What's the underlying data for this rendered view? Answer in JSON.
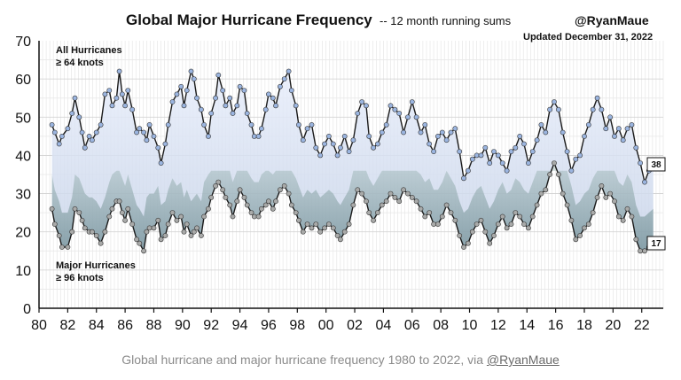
{
  "chart_data": {
    "type": "line",
    "title": "Global Major Hurricane Frequency",
    "subtitle": "-- 12 month running sums",
    "handle": "@RyanMaue",
    "updated": "Updated December 31, 2022",
    "ylim": [
      0,
      70
    ],
    "xlim": [
      1980,
      2023.5
    ],
    "y_ticks": [
      "0",
      "10",
      "20",
      "30",
      "40",
      "50",
      "60",
      "70"
    ],
    "x_ticks": [
      "80",
      "82",
      "84",
      "86",
      "88",
      "90",
      "92",
      "94",
      "96",
      "98",
      "00",
      "02",
      "04",
      "06",
      "08",
      "10",
      "12",
      "14",
      "16",
      "18",
      "20",
      "22"
    ],
    "grid": true,
    "series": [
      {
        "name": "All Hurricanes ≥ 64 knots",
        "label_line1": "All Hurricanes",
        "label_line2": "≥ 64 knots",
        "color": "#1a1a1a",
        "marker_color": "#9bb5e0",
        "fill_color": "#dbe4f7",
        "end_value": "38",
        "points": [
          [
            1980.9,
            48
          ],
          [
            1981.1,
            46
          ],
          [
            1981.4,
            43
          ],
          [
            1981.6,
            45
          ],
          [
            1982.0,
            47
          ],
          [
            1982.3,
            51
          ],
          [
            1982.5,
            55
          ],
          [
            1982.8,
            50
          ],
          [
            1983.0,
            46
          ],
          [
            1983.2,
            42
          ],
          [
            1983.5,
            45
          ],
          [
            1983.7,
            44
          ],
          [
            1984.0,
            46
          ],
          [
            1984.3,
            48
          ],
          [
            1984.6,
            56
          ],
          [
            1984.9,
            57
          ],
          [
            1985.1,
            53
          ],
          [
            1985.4,
            55
          ],
          [
            1985.6,
            62
          ],
          [
            1985.8,
            56
          ],
          [
            1986.0,
            53
          ],
          [
            1986.2,
            57
          ],
          [
            1986.5,
            52
          ],
          [
            1986.8,
            46
          ],
          [
            1987.0,
            47
          ],
          [
            1987.3,
            46
          ],
          [
            1987.5,
            44
          ],
          [
            1987.7,
            48
          ],
          [
            1988.0,
            45
          ],
          [
            1988.3,
            42
          ],
          [
            1988.5,
            38
          ],
          [
            1988.8,
            43
          ],
          [
            1989.0,
            48
          ],
          [
            1989.3,
            54
          ],
          [
            1989.6,
            56
          ],
          [
            1989.9,
            58
          ],
          [
            1990.1,
            53
          ],
          [
            1990.3,
            57
          ],
          [
            1990.6,
            62
          ],
          [
            1990.8,
            60
          ],
          [
            1991.0,
            55
          ],
          [
            1991.3,
            52
          ],
          [
            1991.5,
            48
          ],
          [
            1991.8,
            45
          ],
          [
            1992.0,
            51
          ],
          [
            1992.3,
            55
          ],
          [
            1992.5,
            61
          ],
          [
            1992.8,
            57
          ],
          [
            1993.0,
            53
          ],
          [
            1993.3,
            55
          ],
          [
            1993.5,
            51
          ],
          [
            1993.8,
            53
          ],
          [
            1994.0,
            58
          ],
          [
            1994.3,
            57
          ],
          [
            1994.5,
            51
          ],
          [
            1994.8,
            48
          ],
          [
            1995.0,
            45
          ],
          [
            1995.3,
            45
          ],
          [
            1995.5,
            47
          ],
          [
            1995.8,
            52
          ],
          [
            1996.0,
            56
          ],
          [
            1996.3,
            55
          ],
          [
            1996.5,
            53
          ],
          [
            1996.8,
            58
          ],
          [
            1997.1,
            60
          ],
          [
            1997.4,
            62
          ],
          [
            1997.6,
            57
          ],
          [
            1997.9,
            53
          ],
          [
            1998.1,
            48
          ],
          [
            1998.4,
            44
          ],
          [
            1998.7,
            47
          ],
          [
            1999.0,
            48
          ],
          [
            1999.3,
            42
          ],
          [
            1999.6,
            40
          ],
          [
            1999.9,
            43
          ],
          [
            2000.2,
            45
          ],
          [
            2000.5,
            43
          ],
          [
            2000.8,
            40
          ],
          [
            2001.0,
            42
          ],
          [
            2001.3,
            45
          ],
          [
            2001.6,
            41
          ],
          [
            2001.9,
            44
          ],
          [
            2002.2,
            51
          ],
          [
            2002.5,
            54
          ],
          [
            2002.8,
            53
          ],
          [
            2003.0,
            45
          ],
          [
            2003.3,
            42
          ],
          [
            2003.6,
            43
          ],
          [
            2003.9,
            46
          ],
          [
            2004.2,
            48
          ],
          [
            2004.5,
            53
          ],
          [
            2004.8,
            52
          ],
          [
            2005.1,
            51
          ],
          [
            2005.4,
            46
          ],
          [
            2005.7,
            50
          ],
          [
            2006.0,
            54
          ],
          [
            2006.3,
            50
          ],
          [
            2006.6,
            46
          ],
          [
            2006.9,
            48
          ],
          [
            2007.2,
            43
          ],
          [
            2007.5,
            41
          ],
          [
            2007.8,
            45
          ],
          [
            2008.1,
            46
          ],
          [
            2008.4,
            44
          ],
          [
            2008.7,
            46
          ],
          [
            2009.0,
            47
          ],
          [
            2009.3,
            41
          ],
          [
            2009.6,
            34
          ],
          [
            2009.9,
            36
          ],
          [
            2010.2,
            39
          ],
          [
            2010.5,
            40
          ],
          [
            2010.8,
            40
          ],
          [
            2011.1,
            42
          ],
          [
            2011.4,
            38
          ],
          [
            2011.7,
            41
          ],
          [
            2012.0,
            40
          ],
          [
            2012.3,
            38
          ],
          [
            2012.6,
            36
          ],
          [
            2012.9,
            41
          ],
          [
            2013.2,
            42
          ],
          [
            2013.5,
            45
          ],
          [
            2013.8,
            43
          ],
          [
            2014.1,
            38
          ],
          [
            2014.4,
            41
          ],
          [
            2014.7,
            44
          ],
          [
            2015.0,
            48
          ],
          [
            2015.3,
            46
          ],
          [
            2015.6,
            52
          ],
          [
            2015.9,
            54
          ],
          [
            2016.2,
            52
          ],
          [
            2016.5,
            46
          ],
          [
            2016.8,
            41
          ],
          [
            2017.1,
            36
          ],
          [
            2017.4,
            39
          ],
          [
            2017.7,
            40
          ],
          [
            2018.0,
            45
          ],
          [
            2018.3,
            48
          ],
          [
            2018.6,
            52
          ],
          [
            2018.9,
            55
          ],
          [
            2019.2,
            52
          ],
          [
            2019.5,
            47
          ],
          [
            2019.8,
            50
          ],
          [
            2020.1,
            45
          ],
          [
            2020.4,
            47
          ],
          [
            2020.7,
            44
          ],
          [
            2021.0,
            47
          ],
          [
            2021.3,
            48
          ],
          [
            2021.6,
            42
          ],
          [
            2021.9,
            38
          ],
          [
            2022.2,
            33
          ],
          [
            2022.5,
            36
          ],
          [
            2022.8,
            38
          ]
        ]
      },
      {
        "name": "Major Hurricanes ≥ 96 knots",
        "label_line1": "Major Hurricanes",
        "label_line2": "≥ 96 knots",
        "color": "#1a1a1a",
        "marker_color": "#a9aaa9",
        "fill_color": "#3d6b6a",
        "end_value": "17",
        "points": [
          [
            1980.9,
            26
          ],
          [
            1981.1,
            22
          ],
          [
            1981.4,
            19
          ],
          [
            1981.6,
            16
          ],
          [
            1982.0,
            16
          ],
          [
            1982.3,
            20
          ],
          [
            1982.5,
            26
          ],
          [
            1982.8,
            25
          ],
          [
            1983.0,
            23
          ],
          [
            1983.2,
            21
          ],
          [
            1983.5,
            20
          ],
          [
            1983.7,
            20
          ],
          [
            1984.0,
            19
          ],
          [
            1984.3,
            17
          ],
          [
            1984.6,
            20
          ],
          [
            1984.9,
            24
          ],
          [
            1985.1,
            26
          ],
          [
            1985.4,
            28
          ],
          [
            1985.6,
            28
          ],
          [
            1985.8,
            25
          ],
          [
            1986.0,
            23
          ],
          [
            1986.2,
            26
          ],
          [
            1986.5,
            22
          ],
          [
            1986.8,
            18
          ],
          [
            1987.0,
            17
          ],
          [
            1987.3,
            15
          ],
          [
            1987.5,
            20
          ],
          [
            1987.7,
            21
          ],
          [
            1988.0,
            21
          ],
          [
            1988.3,
            23
          ],
          [
            1988.5,
            18
          ],
          [
            1988.8,
            19
          ],
          [
            1989.0,
            22
          ],
          [
            1989.3,
            25
          ],
          [
            1989.6,
            23
          ],
          [
            1989.9,
            24
          ],
          [
            1990.1,
            20
          ],
          [
            1990.3,
            22
          ],
          [
            1990.6,
            19
          ],
          [
            1990.8,
            20
          ],
          [
            1991.0,
            21
          ],
          [
            1991.3,
            19
          ],
          [
            1991.5,
            24
          ],
          [
            1991.8,
            26
          ],
          [
            1992.0,
            29
          ],
          [
            1992.3,
            32
          ],
          [
            1992.5,
            33
          ],
          [
            1992.8,
            31
          ],
          [
            1993.0,
            29
          ],
          [
            1993.3,
            27
          ],
          [
            1993.5,
            24
          ],
          [
            1993.8,
            28
          ],
          [
            1994.0,
            31
          ],
          [
            1994.3,
            29
          ],
          [
            1994.5,
            27
          ],
          [
            1994.8,
            25
          ],
          [
            1995.0,
            24
          ],
          [
            1995.3,
            24
          ],
          [
            1995.5,
            26
          ],
          [
            1995.8,
            27
          ],
          [
            1996.0,
            28
          ],
          [
            1996.3,
            26
          ],
          [
            1996.5,
            28
          ],
          [
            1996.8,
            31
          ],
          [
            1997.1,
            32
          ],
          [
            1997.4,
            30
          ],
          [
            1997.6,
            27
          ],
          [
            1997.9,
            25
          ],
          [
            1998.1,
            23
          ],
          [
            1998.4,
            20
          ],
          [
            1998.7,
            22
          ],
          [
            1999.0,
            21
          ],
          [
            1999.3,
            22
          ],
          [
            1999.6,
            20
          ],
          [
            1999.9,
            21
          ],
          [
            2000.2,
            22
          ],
          [
            2000.5,
            21
          ],
          [
            2000.8,
            19
          ],
          [
            2001.0,
            18
          ],
          [
            2001.3,
            20
          ],
          [
            2001.6,
            22
          ],
          [
            2001.9,
            27
          ],
          [
            2002.2,
            31
          ],
          [
            2002.5,
            30
          ],
          [
            2002.8,
            28
          ],
          [
            2003.0,
            25
          ],
          [
            2003.3,
            23
          ],
          [
            2003.6,
            25
          ],
          [
            2003.9,
            27
          ],
          [
            2004.2,
            28
          ],
          [
            2004.5,
            30
          ],
          [
            2004.8,
            29
          ],
          [
            2005.1,
            28
          ],
          [
            2005.4,
            31
          ],
          [
            2005.7,
            30
          ],
          [
            2006.0,
            29
          ],
          [
            2006.3,
            28
          ],
          [
            2006.6,
            26
          ],
          [
            2006.9,
            24
          ],
          [
            2007.2,
            25
          ],
          [
            2007.5,
            22
          ],
          [
            2007.8,
            22
          ],
          [
            2008.1,
            24
          ],
          [
            2008.4,
            27
          ],
          [
            2008.7,
            25
          ],
          [
            2009.0,
            23
          ],
          [
            2009.3,
            19
          ],
          [
            2009.6,
            16
          ],
          [
            2009.9,
            17
          ],
          [
            2010.2,
            20
          ],
          [
            2010.5,
            22
          ],
          [
            2010.8,
            23
          ],
          [
            2011.1,
            20
          ],
          [
            2011.4,
            17
          ],
          [
            2011.7,
            19
          ],
          [
            2012.0,
            22
          ],
          [
            2012.3,
            24
          ],
          [
            2012.6,
            21
          ],
          [
            2012.9,
            22
          ],
          [
            2013.2,
            25
          ],
          [
            2013.5,
            24
          ],
          [
            2013.8,
            22
          ],
          [
            2014.1,
            21
          ],
          [
            2014.4,
            24
          ],
          [
            2014.7,
            27
          ],
          [
            2015.0,
            30
          ],
          [
            2015.3,
            31
          ],
          [
            2015.6,
            35
          ],
          [
            2015.9,
            38
          ],
          [
            2016.2,
            35
          ],
          [
            2016.5,
            30
          ],
          [
            2016.8,
            27
          ],
          [
            2017.1,
            23
          ],
          [
            2017.4,
            18
          ],
          [
            2017.7,
            19
          ],
          [
            2018.0,
            21
          ],
          [
            2018.3,
            22
          ],
          [
            2018.6,
            25
          ],
          [
            2018.9,
            29
          ],
          [
            2019.2,
            32
          ],
          [
            2019.5,
            29
          ],
          [
            2019.8,
            30
          ],
          [
            2020.1,
            28
          ],
          [
            2020.4,
            24
          ],
          [
            2020.7,
            23
          ],
          [
            2021.0,
            26
          ],
          [
            2021.3,
            24
          ],
          [
            2021.6,
            18
          ],
          [
            2021.9,
            15
          ],
          [
            2022.2,
            15
          ],
          [
            2022.5,
            16
          ],
          [
            2022.8,
            17
          ]
        ]
      }
    ]
  },
  "caption": {
    "text": "Global hurricane and major hurricane frequency 1980 to 2022, via ",
    "link": "@RyanMaue"
  }
}
